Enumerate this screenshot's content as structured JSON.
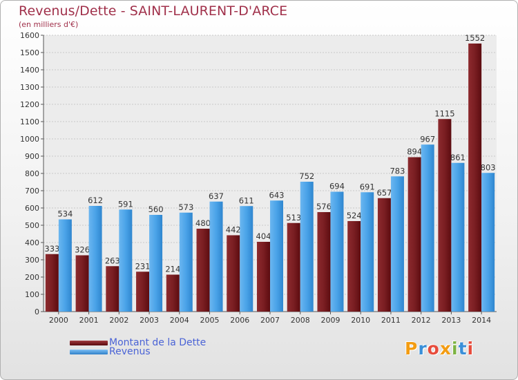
{
  "chart_data": {
    "type": "bar",
    "title": "Revenus/Dette - SAINT-LAURENT-D'ARCE",
    "subtitle": "(en milliers d'€)",
    "categories": [
      "2000",
      "2001",
      "2002",
      "2003",
      "2004",
      "2005",
      "2006",
      "2007",
      "2008",
      "2009",
      "2010",
      "2011",
      "2012",
      "2013",
      "2014"
    ],
    "series": [
      {
        "name": "Montant de la Dette",
        "color": "#6b0e12",
        "values": [
          333,
          326,
          263,
          231,
          214,
          480,
          442,
          404,
          513,
          576,
          524,
          657,
          894,
          1115,
          1552
        ]
      },
      {
        "name": "Revenus",
        "color": "#3a96e0",
        "values": [
          534,
          612,
          591,
          560,
          573,
          637,
          611,
          643,
          752,
          694,
          691,
          783,
          967,
          861,
          803
        ]
      }
    ],
    "ylim": [
      0,
      1600
    ],
    "yticks": [
      0,
      100,
      200,
      300,
      400,
      500,
      600,
      700,
      800,
      900,
      1000,
      1100,
      1200,
      1300,
      1400,
      1500,
      1600
    ],
    "xlabel": "",
    "ylabel": "",
    "grid": true,
    "legend_position": "bottom-left"
  },
  "legend": [
    {
      "label": "Montant de la Dette"
    },
    {
      "label": "Revenus"
    }
  ],
  "logo": {
    "text": "Proxiti",
    "letters": [
      {
        "ch": "P",
        "color": "#f39c12"
      },
      {
        "ch": "r",
        "color": "#3a8fd8"
      },
      {
        "ch": "o",
        "color": "#e74c3c"
      },
      {
        "ch": "x",
        "color": "#f39c12"
      },
      {
        "ch": "i",
        "color": "#7cb342"
      },
      {
        "ch": "t",
        "color": "#3a8fd8"
      },
      {
        "ch": "i",
        "color": "#e74c3c"
      }
    ]
  }
}
